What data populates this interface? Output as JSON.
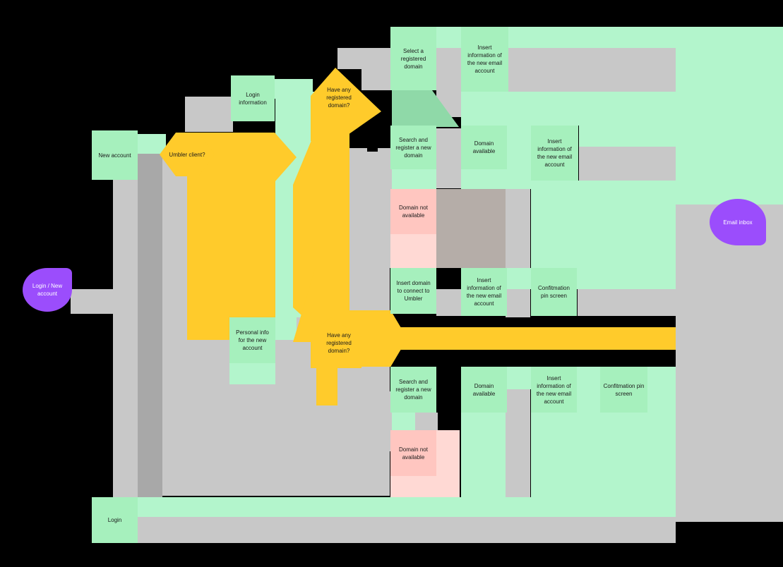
{
  "colors": {
    "gray": "#c8c8c8",
    "mint": "#b3f5cc",
    "green_node": "#a6f0bd",
    "yellow": "#ffcb2b",
    "pink": "#ffc6c0",
    "purple": "#9b4dfc"
  },
  "nodes": {
    "login_new_account": "Login / New account",
    "new_account": "New account",
    "umbler_client": "Umbler client?",
    "login_information": "Login information",
    "have_domain_top": "Have any registered domain?",
    "select_domain": "Select a registered domain",
    "insert_info_top": "Insert information of the new email account",
    "search_register_top": "Search and register a new domain",
    "domain_available_top": "Domain available",
    "insert_info_mid": "Insert information of the new email account",
    "domain_not_available_top": "Domain not available",
    "insert_domain_connect": "Insert domain to connect to Umbler",
    "insert_info_connect": "Insert information of the new email account",
    "confirmation_pin_top": "Confitmation pin screen",
    "personal_info": "Personal info for the new account",
    "have_domain_bottom": "Have any registered domain?",
    "search_register_bottom": "Search and register a new domain",
    "domain_available_bottom": "Domain available",
    "insert_info_bottom": "Insert information of the new email account",
    "confirmation_pin_bottom": "Confitmation pin screen",
    "domain_not_available_bottom": "Domain not available",
    "login": "Login",
    "email_inbox": "Email inbox"
  }
}
